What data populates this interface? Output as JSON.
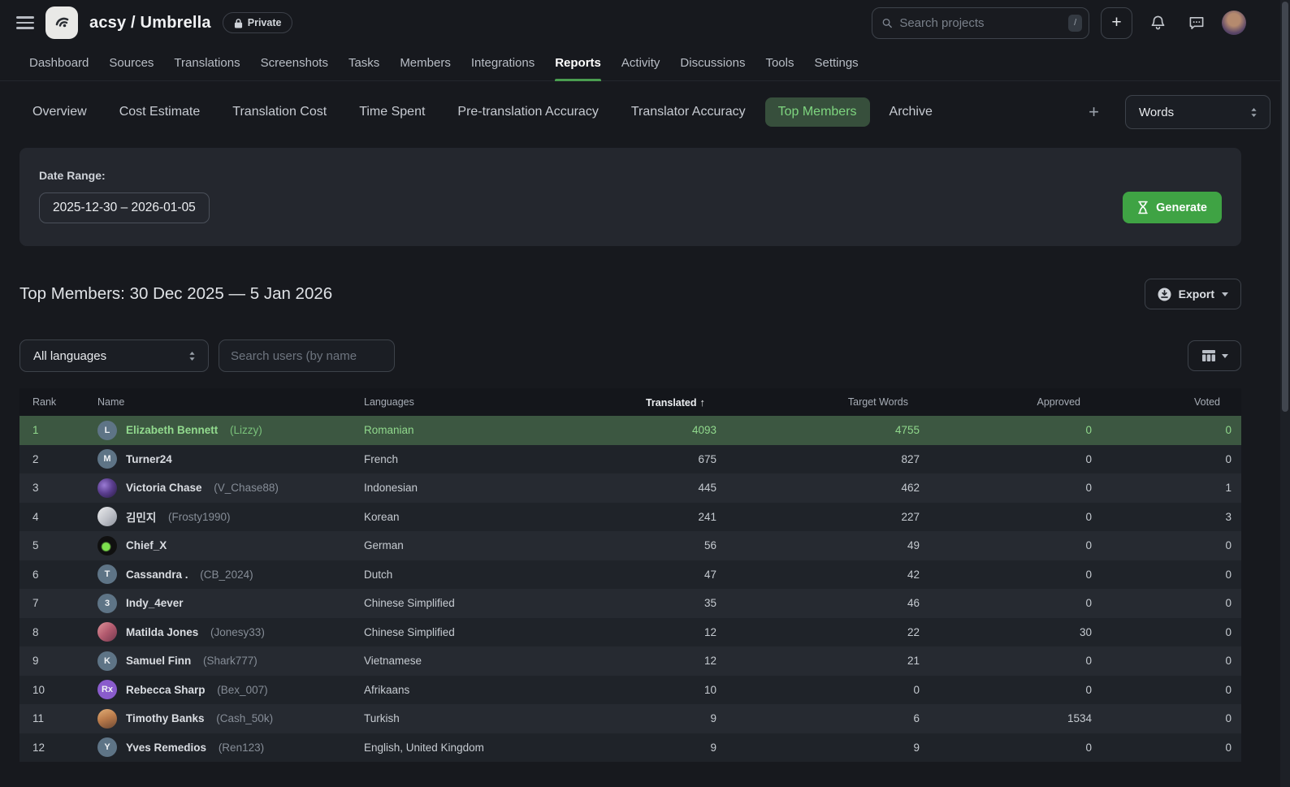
{
  "colors": {
    "accent_green": "#3fa344",
    "active_tab_underline": "#4a9d50",
    "active_pill_bg": "#374f3c",
    "active_pill_text": "#7ed57f",
    "highlight_row_bg": "#3c5741",
    "highlight_row_text": "#90d88c",
    "page_bg": "#17191e",
    "panel_bg": "#24272e"
  },
  "header": {
    "project_title": "acsy / Umbrella",
    "private_badge": "Private",
    "search_placeholder": "Search projects",
    "search_shortcut": "/",
    "add_button": "+"
  },
  "main_nav": {
    "active": "Reports",
    "items": [
      "Dashboard",
      "Sources",
      "Translations",
      "Screenshots",
      "Tasks",
      "Members",
      "Integrations",
      "Reports",
      "Activity",
      "Discussions",
      "Tools",
      "Settings"
    ]
  },
  "report_tabs": {
    "active": "Top Members",
    "items": [
      "Overview",
      "Cost Estimate",
      "Translation Cost",
      "Time Spent",
      "Pre-translation Accuracy",
      "Translator Accuracy",
      "Top Members",
      "Archive"
    ],
    "add_tab": "+",
    "unit_select_value": "Words"
  },
  "generator": {
    "date_range_label": "Date Range:",
    "date_range_value": "2025-12-30 – 2026-01-05",
    "generate_label": "Generate"
  },
  "report": {
    "title": "Top Members: 30 Dec 2025 — 5 Jan 2026",
    "export_label": "Export"
  },
  "filters": {
    "language_select_value": "All languages",
    "user_search_placeholder": "Search users (by name"
  },
  "table": {
    "columns": [
      "Rank",
      "Name",
      "Languages",
      "Translated",
      "Target Words",
      "Approved",
      "Voted"
    ],
    "sort_column": "Translated",
    "sort_direction": "asc",
    "rows": [
      {
        "rank": "1",
        "name": "Elizabeth Bennett",
        "username": "(Lizzy)",
        "avatar": {
          "kind": "initials",
          "text": "L",
          "bg": "#5e7486"
        },
        "languages": "Romanian",
        "translated": "4093",
        "target_words": "4755",
        "approved": "0",
        "voted": "0",
        "highlighted": true
      },
      {
        "rank": "2",
        "name": "Turner24",
        "username": "",
        "avatar": {
          "kind": "initials",
          "text": "M",
          "bg": "#5e7486"
        },
        "languages": "French",
        "translated": "675",
        "target_words": "827",
        "approved": "0",
        "voted": "0",
        "highlighted": false
      },
      {
        "rank": "3",
        "name": "Victoria Chase",
        "username": "(V_Chase88)",
        "avatar": {
          "kind": "photo",
          "gradient": "galaxy"
        },
        "languages": "Indonesian",
        "translated": "445",
        "target_words": "462",
        "approved": "0",
        "voted": "1",
        "highlighted": false
      },
      {
        "rank": "4",
        "name": "김민지",
        "username": "(Frosty1990)",
        "avatar": {
          "kind": "photo",
          "gradient": "silver"
        },
        "languages": "Korean",
        "translated": "241",
        "target_words": "227",
        "approved": "0",
        "voted": "3",
        "highlighted": false
      },
      {
        "rank": "5",
        "name": "Chief_X",
        "username": "",
        "avatar": {
          "kind": "photo",
          "gradient": "dark-dot"
        },
        "languages": "German",
        "translated": "56",
        "target_words": "49",
        "approved": "0",
        "voted": "0",
        "highlighted": false
      },
      {
        "rank": "6",
        "name": "Cassandra .",
        "username": "(CB_2024)",
        "avatar": {
          "kind": "initials",
          "text": "T",
          "bg": "#5e7486"
        },
        "languages": "Dutch",
        "translated": "47",
        "target_words": "42",
        "approved": "0",
        "voted": "0",
        "highlighted": false
      },
      {
        "rank": "7",
        "name": "Indy_4ever",
        "username": "",
        "avatar": {
          "kind": "initials",
          "text": "3",
          "bg": "#5e7486"
        },
        "languages": "Chinese Simplified",
        "translated": "35",
        "target_words": "46",
        "approved": "0",
        "voted": "0",
        "highlighted": false
      },
      {
        "rank": "8",
        "name": "Matilda Jones",
        "username": "(Jonesy33)",
        "avatar": {
          "kind": "photo",
          "gradient": "rose"
        },
        "languages": "Chinese Simplified",
        "translated": "12",
        "target_words": "22",
        "approved": "30",
        "voted": "0",
        "highlighted": false
      },
      {
        "rank": "9",
        "name": "Samuel Finn",
        "username": "(Shark777)",
        "avatar": {
          "kind": "initials",
          "text": "K",
          "bg": "#5e7486"
        },
        "languages": "Vietnamese",
        "translated": "12",
        "target_words": "21",
        "approved": "0",
        "voted": "0",
        "highlighted": false
      },
      {
        "rank": "10",
        "name": "Rebecca Sharp",
        "username": "(Bex_007)",
        "avatar": {
          "kind": "initials",
          "text": "Rx",
          "bg": "#8a5ccc"
        },
        "languages": "Afrikaans",
        "translated": "10",
        "target_words": "0",
        "approved": "0",
        "voted": "0",
        "highlighted": false
      },
      {
        "rank": "11",
        "name": "Timothy Banks",
        "username": "(Cash_50k)",
        "avatar": {
          "kind": "photo",
          "gradient": "amber"
        },
        "languages": "Turkish",
        "translated": "9",
        "target_words": "6",
        "approved": "1534",
        "voted": "0",
        "highlighted": false
      },
      {
        "rank": "12",
        "name": "Yves Remedios",
        "username": "(Ren123)",
        "avatar": {
          "kind": "initials",
          "text": "Y",
          "bg": "#5e7486"
        },
        "languages": "English, United Kingdom",
        "translated": "9",
        "target_words": "9",
        "approved": "0",
        "voted": "0",
        "highlighted": false
      }
    ]
  }
}
